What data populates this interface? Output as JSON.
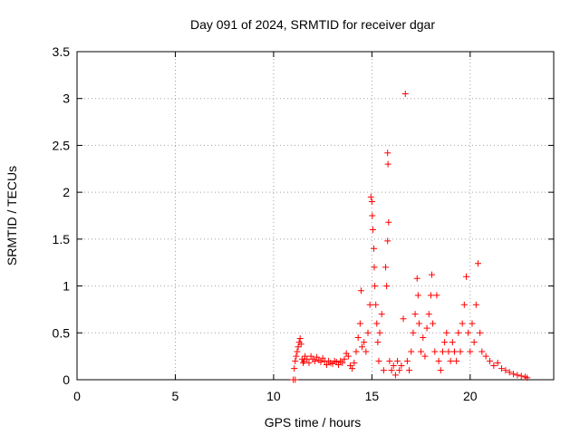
{
  "chart_data": {
    "type": "scatter",
    "title": "Day 091 of 2024, SRMTID for receiver dgar",
    "xlabel": "GPS time / hours",
    "ylabel": "SRMTID / TECUs",
    "xlim": [
      0,
      24.25
    ],
    "ylim": [
      0,
      3.5
    ],
    "xticks": [
      0,
      5,
      10,
      15,
      20
    ],
    "xtick_labels": [
      "0",
      "5",
      "10",
      "15",
      "20"
    ],
    "yticks": [
      0,
      0.5,
      1,
      1.5,
      2,
      2.5,
      3,
      3.5
    ],
    "ytick_labels": [
      "0",
      "0.5",
      "1",
      "1.5",
      "2",
      "2.5",
      "3",
      "3.5"
    ],
    "grid": true,
    "marker": "+",
    "series": [
      {
        "name": "SRMTID",
        "color": "#ff0000",
        "points": [
          [
            11.0,
            0.0
          ],
          [
            11.1,
            0.0
          ],
          [
            11.05,
            0.12
          ],
          [
            11.1,
            0.2
          ],
          [
            11.15,
            0.25
          ],
          [
            11.2,
            0.3
          ],
          [
            11.25,
            0.35
          ],
          [
            11.3,
            0.4
          ],
          [
            11.35,
            0.44
          ],
          [
            11.4,
            0.38
          ],
          [
            11.45,
            0.22
          ],
          [
            11.5,
            0.18
          ],
          [
            11.55,
            0.2
          ],
          [
            11.6,
            0.25
          ],
          [
            11.7,
            0.22
          ],
          [
            11.8,
            0.18
          ],
          [
            11.9,
            0.25
          ],
          [
            12.0,
            0.22
          ],
          [
            12.1,
            0.2
          ],
          [
            12.2,
            0.24
          ],
          [
            12.3,
            0.21
          ],
          [
            12.4,
            0.19
          ],
          [
            12.5,
            0.23
          ],
          [
            12.6,
            0.2
          ],
          [
            12.7,
            0.16
          ],
          [
            12.8,
            0.2
          ],
          [
            12.9,
            0.18
          ],
          [
            13.0,
            0.17
          ],
          [
            13.1,
            0.2
          ],
          [
            13.2,
            0.19
          ],
          [
            13.3,
            0.16
          ],
          [
            13.4,
            0.2
          ],
          [
            13.5,
            0.18
          ],
          [
            13.6,
            0.22
          ],
          [
            13.7,
            0.28
          ],
          [
            13.8,
            0.25
          ],
          [
            13.9,
            0.15
          ],
          [
            14.0,
            0.12
          ],
          [
            14.1,
            0.18
          ],
          [
            14.2,
            0.3
          ],
          [
            14.3,
            0.45
          ],
          [
            14.4,
            0.6
          ],
          [
            14.45,
            0.95
          ],
          [
            14.5,
            0.35
          ],
          [
            14.6,
            0.4
          ],
          [
            14.7,
            0.3
          ],
          [
            14.8,
            0.5
          ],
          [
            14.9,
            0.8
          ],
          [
            14.95,
            1.95
          ],
          [
            15.0,
            1.9
          ],
          [
            15.02,
            1.75
          ],
          [
            15.05,
            1.6
          ],
          [
            15.1,
            1.4
          ],
          [
            15.12,
            1.2
          ],
          [
            15.15,
            1.0
          ],
          [
            15.2,
            0.8
          ],
          [
            15.25,
            0.6
          ],
          [
            15.3,
            0.4
          ],
          [
            15.35,
            0.2
          ],
          [
            15.4,
            0.5
          ],
          [
            15.5,
            0.7
          ],
          [
            15.6,
            0.1
          ],
          [
            15.7,
            1.2
          ],
          [
            15.75,
            1.0
          ],
          [
            15.8,
            2.42
          ],
          [
            15.82,
            2.3
          ],
          [
            15.85,
            1.68
          ],
          [
            15.8,
            1.48
          ],
          [
            15.9,
            0.2
          ],
          [
            16.0,
            0.1
          ],
          [
            16.1,
            0.15
          ],
          [
            16.2,
            0.05
          ],
          [
            16.3,
            0.2
          ],
          [
            16.4,
            0.1
          ],
          [
            16.5,
            0.15
          ],
          [
            16.6,
            0.65
          ],
          [
            16.7,
            3.05
          ],
          [
            16.8,
            0.2
          ],
          [
            16.9,
            0.1
          ],
          [
            17.0,
            0.3
          ],
          [
            17.1,
            0.5
          ],
          [
            17.2,
            0.7
          ],
          [
            17.3,
            1.08
          ],
          [
            17.35,
            0.9
          ],
          [
            17.4,
            0.6
          ],
          [
            17.5,
            0.3
          ],
          [
            17.6,
            0.45
          ],
          [
            17.7,
            0.25
          ],
          [
            17.8,
            0.55
          ],
          [
            17.9,
            0.7
          ],
          [
            18.0,
            0.9
          ],
          [
            18.05,
            1.12
          ],
          [
            18.1,
            0.6
          ],
          [
            18.2,
            0.3
          ],
          [
            18.3,
            0.9
          ],
          [
            18.4,
            0.2
          ],
          [
            18.5,
            0.1
          ],
          [
            18.6,
            0.3
          ],
          [
            18.7,
            0.4
          ],
          [
            18.8,
            0.5
          ],
          [
            18.9,
            0.3
          ],
          [
            19.0,
            0.2
          ],
          [
            19.1,
            0.4
          ],
          [
            19.2,
            0.3
          ],
          [
            19.3,
            0.2
          ],
          [
            19.4,
            0.5
          ],
          [
            19.5,
            0.3
          ],
          [
            19.6,
            0.6
          ],
          [
            19.7,
            0.8
          ],
          [
            19.8,
            1.1
          ],
          [
            19.9,
            0.5
          ],
          [
            20.0,
            0.3
          ],
          [
            20.1,
            0.6
          ],
          [
            20.2,
            0.4
          ],
          [
            20.3,
            0.8
          ],
          [
            20.4,
            1.24
          ],
          [
            20.5,
            0.5
          ],
          [
            20.6,
            0.3
          ],
          [
            20.8,
            0.25
          ],
          [
            21.0,
            0.2
          ],
          [
            21.2,
            0.15
          ],
          [
            21.4,
            0.18
          ],
          [
            21.6,
            0.12
          ],
          [
            21.8,
            0.1
          ],
          [
            22.0,
            0.08
          ],
          [
            22.2,
            0.06
          ],
          [
            22.4,
            0.05
          ],
          [
            22.6,
            0.04
          ],
          [
            22.8,
            0.03
          ],
          [
            22.9,
            0.02
          ]
        ]
      }
    ]
  }
}
